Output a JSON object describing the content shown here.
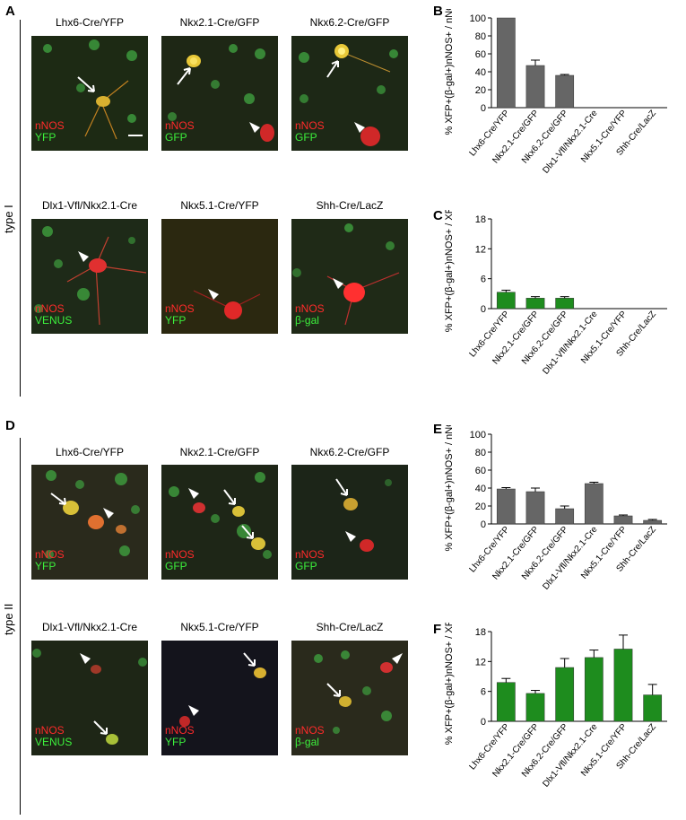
{
  "panels": {
    "A": "A",
    "B": "B",
    "C": "C",
    "D": "D",
    "E": "E",
    "F": "F"
  },
  "type_labels": {
    "top": "type I",
    "bottom": "type II"
  },
  "micrographs_top": [
    {
      "title": "Lhx6-Cre/YFP",
      "red": "nNOS",
      "green": "YFP"
    },
    {
      "title": "Nkx2.1-Cre/GFP",
      "red": "nNOS",
      "green": "GFP"
    },
    {
      "title": "Nkx6.2-Cre/GFP",
      "red": "nNOS",
      "green": "GFP"
    },
    {
      "title": "Dlx1-Vfl/Nkx2.1-Cre",
      "red": "nNOS",
      "green": "VENUS"
    },
    {
      "title": "Nkx5.1-Cre/YFP",
      "red": "nNOS",
      "green": "YFP"
    },
    {
      "title": "Shh-Cre/LacZ",
      "red": "nNOS",
      "green": "β-gal"
    }
  ],
  "micrographs_bottom": [
    {
      "title": "Lhx6-Cre/YFP",
      "red": "nNOS",
      "green": "YFP"
    },
    {
      "title": "Nkx2.1-Cre/GFP",
      "red": "nNOS",
      "green": "GFP"
    },
    {
      "title": "Nkx6.2-Cre/GFP",
      "red": "nNOS",
      "green": "GFP"
    },
    {
      "title": "Dlx1-Vfl/Nkx2.1-Cre",
      "red": "nNOS",
      "green": "VENUS"
    },
    {
      "title": "Nkx5.1-Cre/YFP",
      "red": "nNOS",
      "green": "YFP"
    },
    {
      "title": "Shh-Cre/LacZ",
      "red": "nNOS",
      "green": "β-gal"
    }
  ],
  "chart_data": [
    {
      "id": "B",
      "type": "bar",
      "categories": [
        "Lhx6-Cre/YFP",
        "Nkx2.1-Cre/GFP",
        "Nkx6.2-Cre/GFP",
        "Dlx1-Vfl/Nkx2.1-Cre",
        "Nkx5.1-Cre/YFP",
        "Shh-Cre/LacZ"
      ],
      "values": [
        100,
        47,
        36,
        0,
        0,
        0
      ],
      "errors": [
        0,
        6,
        1,
        0,
        0,
        0
      ],
      "ylabel": "% XFP+(β-gal+)nNOS+ / nNOS+",
      "ylim": [
        0,
        100
      ],
      "yticks": [
        0,
        20,
        40,
        60,
        80,
        100
      ],
      "color": "#666666"
    },
    {
      "id": "C",
      "type": "bar",
      "categories": [
        "Lhx6-Cre/YFP",
        "Nkx2.1-Cre/GFP",
        "Nkx6.2-Cre/GFP",
        "Dlx1-Vfl/Nkx2.1-Cre",
        "Nkx5.1-Cre/YFP",
        "Shh-Cre/LacZ"
      ],
      "values": [
        3.3,
        2.1,
        2.1,
        0,
        0,
        0
      ],
      "errors": [
        0.4,
        0.3,
        0.3,
        0,
        0,
        0
      ],
      "ylabel": "% XFP+(β-gal+)nNOS+ / XFP+",
      "ylim": [
        0,
        18
      ],
      "yticks": [
        0,
        6,
        12,
        18
      ],
      "color": "#1e8c1e"
    },
    {
      "id": "E",
      "type": "bar",
      "categories": [
        "Lhx6-Cre/YFP",
        "Nkx2.1-Cre/GFP",
        "Nkx6.2-Cre/GFP",
        "Dlx1-Vfl/Nkx2.1-Cre",
        "Nkx5.1-Cre/YFP",
        "Shh-Cre/LacZ"
      ],
      "values": [
        39,
        36,
        17,
        45,
        9,
        4
      ],
      "errors": [
        1.5,
        4,
        3,
        1.5,
        1,
        1
      ],
      "ylabel": "% XFP+(β-gal+)nNOS+ / nNOS+",
      "ylim": [
        0,
        100
      ],
      "yticks": [
        0,
        20,
        40,
        60,
        80,
        100
      ],
      "color": "#666666"
    },
    {
      "id": "F",
      "type": "bar",
      "categories": [
        "Lhx6-Cre/YFP",
        "Nkx2.1-Cre/GFP",
        "Nkx6.2-Cre/GFP",
        "Dlx1-Vfl/Nkx2.1-Cre",
        "Nkx5.1-Cre/YFP",
        "Shh-Cre/LacZ"
      ],
      "values": [
        7.8,
        5.6,
        10.8,
        12.8,
        14.5,
        5.3
      ],
      "errors": [
        0.8,
        0.6,
        1.8,
        1.5,
        2.8,
        2.1
      ],
      "ylabel": "% XFP+(β-gal+)nNOS+ / XFP+",
      "ylim": [
        0,
        18
      ],
      "yticks": [
        0,
        6,
        12,
        18
      ],
      "color": "#1e8c1e"
    }
  ]
}
